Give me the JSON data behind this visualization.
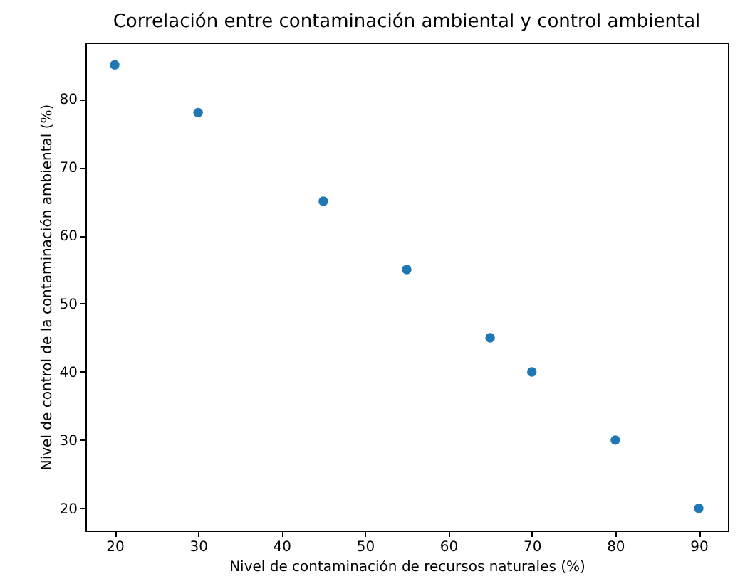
{
  "chart_data": {
    "type": "scatter",
    "title": "Correlación entre contaminación ambiental y control ambiental",
    "xlabel": "Nivel de contaminación de recursos naturales (%)",
    "ylabel": "Nivel de control de la contaminación ambiental (%)",
    "x": [
      20,
      30,
      45,
      55,
      65,
      70,
      80,
      90
    ],
    "series": [
      {
        "color": "#1f77b4",
        "values": [
          85,
          78,
          65,
          55,
          45,
          40,
          30,
          20
        ]
      }
    ],
    "xlim": [
      16.5,
      93.5
    ],
    "xticks": [
      20,
      30,
      40,
      50,
      60,
      70,
      80,
      90
    ],
    "ylim": [
      16.75,
      88.25
    ],
    "yticks": [
      20,
      30,
      40,
      50,
      60,
      70,
      80
    ],
    "grid": false,
    "marker": "circle"
  }
}
